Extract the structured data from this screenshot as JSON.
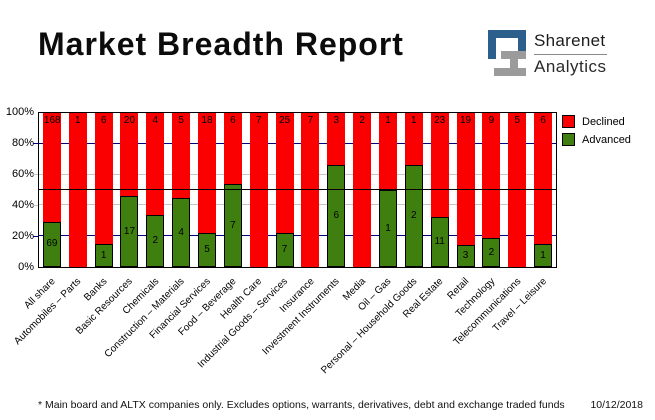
{
  "header": {
    "title": "Market Breadth Report",
    "logo": {
      "line1": "Sharenet",
      "line2": "Analytics"
    }
  },
  "chart_data": {
    "type": "bar",
    "variant": "stacked-100-percent",
    "title": "Market Breadth Report",
    "categories": [
      "All share",
      "Automobiles – Parts",
      "Banks",
      "Basic Resources",
      "Chemicals",
      "Construction – Materials",
      "Financial Services",
      "Food – Beverage",
      "Health Care",
      "Industrial Goods – Services",
      "Insurance",
      "Investment Instruments",
      "Media",
      "Oil – Gas",
      "Personal – Household Goods",
      "Real Estate",
      "Retail",
      "Technology",
      "Telecommunications",
      "Travel – Leisure"
    ],
    "series": [
      {
        "name": "Declined",
        "color": "#fb0000",
        "values": [
          168,
          1,
          6,
          20,
          4,
          5,
          18,
          6,
          7,
          25,
          7,
          3,
          2,
          1,
          1,
          23,
          19,
          9,
          5,
          6
        ]
      },
      {
        "name": "Advanced",
        "color": "#3e7f10",
        "values": [
          69,
          0,
          1,
          17,
          2,
          4,
          5,
          7,
          0,
          7,
          0,
          6,
          0,
          1,
          2,
          11,
          3,
          2,
          0,
          1
        ]
      }
    ],
    "ylim": [
      0,
      100
    ],
    "y_ticks": [
      {
        "pct": 0,
        "label": "0%"
      },
      {
        "pct": 20,
        "label": "20%"
      },
      {
        "pct": 40,
        "label": "40%"
      },
      {
        "pct": 60,
        "label": "60%"
      },
      {
        "pct": 80,
        "label": "80%"
      },
      {
        "pct": 100,
        "label": "100%"
      }
    ],
    "gridlines": [
      {
        "pct": 20,
        "tone": "major"
      },
      {
        "pct": 40,
        "tone": "minor"
      },
      {
        "pct": 60,
        "tone": "minor"
      },
      {
        "pct": 80,
        "tone": "major"
      }
    ],
    "reference_line_pct": 50,
    "legend_position": "top-right",
    "legend": [
      "Declined",
      "Advanced"
    ]
  },
  "colors": {
    "declined": "#fb0000",
    "advanced": "#3e7f10",
    "grid_major": "#00007e",
    "grid_minor": "#c6c6c6",
    "reference_line": "#000000",
    "logo_blue": "#2d5f8c",
    "logo_gray": "#9b9b9b"
  },
  "footer": {
    "note": "* Main board and ALTX companies only. Excludes options, warrants, derivatives, debt and exchange traded funds",
    "date": "10/12/2018"
  }
}
